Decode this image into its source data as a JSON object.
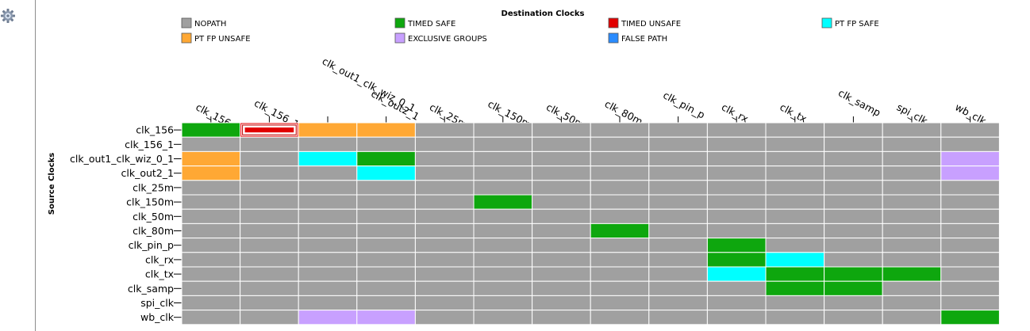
{
  "toolbar": {
    "settings_icon": "gear-icon"
  },
  "chart_data": {
    "type": "heatmap",
    "title": "Destination Clocks",
    "ylabel": "Source Clocks",
    "legend": [
      {
        "key": "NOPATH",
        "label": "NOPATH",
        "color": "#a0a0a0"
      },
      {
        "key": "TIMED_SAFE",
        "label": "TIMED SAFE",
        "color": "#0ea70e"
      },
      {
        "key": "TIMED_UNSAFE",
        "label": "TIMED UNSAFE",
        "color": "#e10000"
      },
      {
        "key": "PT_FP_SAFE",
        "label": "PT FP SAFE",
        "color": "#00ffff"
      },
      {
        "key": "PT_FP_UNSAFE",
        "label": "PT FP UNSAFE",
        "color": "#ffa834"
      },
      {
        "key": "EXCLUSIVE_GROUPS",
        "label": "EXCLUSIVE GROUPS",
        "color": "#c8a0ff"
      },
      {
        "key": "FALSE_PATH",
        "label": "FALSE PATH",
        "color": "#2a8cff"
      }
    ],
    "columns": [
      "clk_156",
      "clk_156_1",
      "clk_out1_clk_wiz_0_1",
      "clk_out2_1",
      "clk_25m",
      "clk_150m",
      "clk_50m",
      "clk_80m",
      "clk_pin_p",
      "clk_rx",
      "clk_tx",
      "clk_samp",
      "spi_clk",
      "wb_clk"
    ],
    "rows": [
      "clk_156",
      "clk_156_1",
      "clk_out1_clk_wiz_0_1",
      "clk_out2_1",
      "clk_25m",
      "clk_150m",
      "clk_50m",
      "clk_80m",
      "clk_pin_p",
      "clk_rx",
      "clk_tx",
      "clk_samp",
      "spi_clk",
      "wb_clk"
    ],
    "default_state": "NOPATH",
    "selected_cell": {
      "row": "clk_156",
      "col": "clk_156_1"
    },
    "cells": [
      {
        "row": "clk_156",
        "col": "clk_156",
        "state": "TIMED_SAFE"
      },
      {
        "row": "clk_156",
        "col": "clk_156_1",
        "state": "TIMED_UNSAFE"
      },
      {
        "row": "clk_156",
        "col": "clk_out1_clk_wiz_0_1",
        "state": "PT_FP_UNSAFE"
      },
      {
        "row": "clk_156",
        "col": "clk_out2_1",
        "state": "PT_FP_UNSAFE"
      },
      {
        "row": "clk_out1_clk_wiz_0_1",
        "col": "clk_156",
        "state": "PT_FP_UNSAFE"
      },
      {
        "row": "clk_out1_clk_wiz_0_1",
        "col": "clk_out1_clk_wiz_0_1",
        "state": "PT_FP_SAFE"
      },
      {
        "row": "clk_out1_clk_wiz_0_1",
        "col": "clk_out2_1",
        "state": "TIMED_SAFE"
      },
      {
        "row": "clk_out1_clk_wiz_0_1",
        "col": "wb_clk",
        "state": "EXCLUSIVE_GROUPS"
      },
      {
        "row": "clk_out2_1",
        "col": "clk_156",
        "state": "PT_FP_UNSAFE"
      },
      {
        "row": "clk_out2_1",
        "col": "clk_out2_1",
        "state": "PT_FP_SAFE"
      },
      {
        "row": "clk_out2_1",
        "col": "wb_clk",
        "state": "EXCLUSIVE_GROUPS"
      },
      {
        "row": "clk_150m",
        "col": "clk_150m",
        "state": "TIMED_SAFE"
      },
      {
        "row": "clk_80m",
        "col": "clk_80m",
        "state": "TIMED_SAFE"
      },
      {
        "row": "clk_pin_p",
        "col": "clk_rx",
        "state": "TIMED_SAFE"
      },
      {
        "row": "clk_rx",
        "col": "clk_rx",
        "state": "TIMED_SAFE"
      },
      {
        "row": "clk_rx",
        "col": "clk_tx",
        "state": "PT_FP_SAFE"
      },
      {
        "row": "clk_tx",
        "col": "clk_rx",
        "state": "PT_FP_SAFE"
      },
      {
        "row": "clk_tx",
        "col": "clk_tx",
        "state": "TIMED_SAFE"
      },
      {
        "row": "clk_tx",
        "col": "clk_samp",
        "state": "TIMED_SAFE"
      },
      {
        "row": "clk_tx",
        "col": "spi_clk",
        "state": "TIMED_SAFE"
      },
      {
        "row": "clk_samp",
        "col": "clk_tx",
        "state": "TIMED_SAFE"
      },
      {
        "row": "clk_samp",
        "col": "clk_samp",
        "state": "TIMED_SAFE"
      },
      {
        "row": "wb_clk",
        "col": "clk_out1_clk_wiz_0_1",
        "state": "EXCLUSIVE_GROUPS"
      },
      {
        "row": "wb_clk",
        "col": "clk_out2_1",
        "state": "EXCLUSIVE_GROUPS"
      },
      {
        "row": "wb_clk",
        "col": "wb_clk",
        "state": "TIMED_SAFE"
      }
    ]
  }
}
